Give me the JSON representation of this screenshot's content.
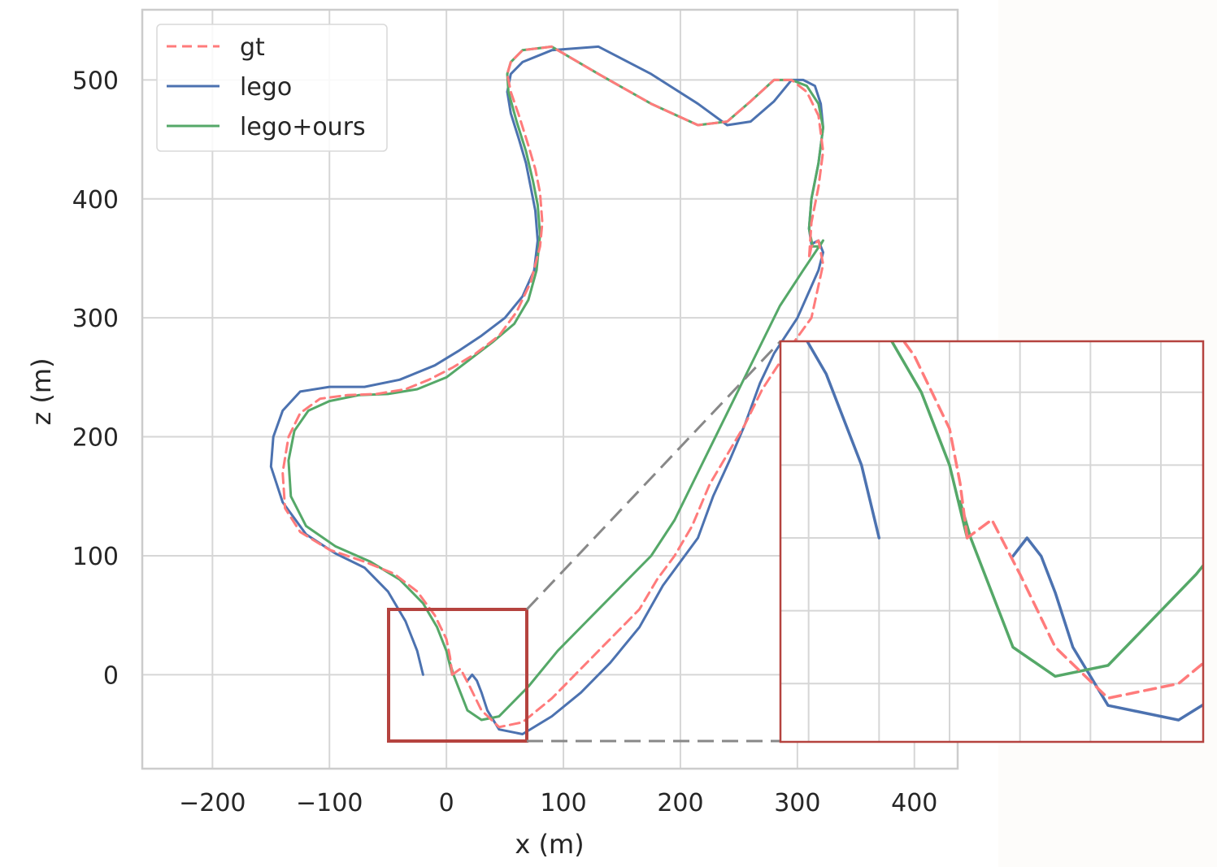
{
  "chart_data": {
    "type": "line",
    "xlabel": "x (m)",
    "ylabel": "z (m)",
    "xlim": [
      -260,
      437
    ],
    "ylim": [
      -79,
      559
    ],
    "xticks": [
      -200,
      -100,
      0,
      100,
      200,
      300,
      400
    ],
    "xtick_labels": [
      "−200",
      "−100",
      "0",
      "100",
      "200",
      "300",
      "400"
    ],
    "yticks": [
      0,
      100,
      200,
      300,
      400,
      500
    ],
    "ytick_labels": [
      "0",
      "100",
      "200",
      "300",
      "400",
      "500"
    ],
    "grid": true,
    "legend_position": "top-left",
    "series": [
      {
        "name": "gt",
        "color": "#ff7b7b",
        "style": "dashed",
        "x": [
          5,
          3,
          0,
          -10,
          -25,
          -45,
          -70,
          -100,
          -125,
          -138,
          -140,
          -135,
          -125,
          -108,
          -85,
          -60,
          -35,
          -15,
          5,
          25,
          45,
          60,
          72,
          80,
          82,
          80,
          76,
          70,
          62,
          55,
          52,
          55,
          65,
          90,
          130,
          175,
          215,
          240,
          260,
          280,
          295,
          308,
          318,
          322,
          318,
          312,
          310,
          312,
          318,
          322,
          312,
          290,
          270,
          255,
          240,
          225,
          210,
          195,
          180,
          165,
          140,
          115,
          90,
          65,
          45,
          30,
          20,
          12,
          5
        ],
        "z": [
          0,
          15,
          30,
          50,
          70,
          85,
          95,
          105,
          120,
          140,
          170,
          200,
          220,
          232,
          235,
          236,
          240,
          248,
          258,
          270,
          285,
          305,
          330,
          360,
          380,
          405,
          425,
          445,
          470,
          490,
          505,
          515,
          525,
          528,
          505,
          480,
          462,
          465,
          482,
          500,
          500,
          490,
          470,
          440,
          410,
          380,
          350,
          360,
          365,
          345,
          300,
          270,
          240,
          210,
          185,
          160,
          125,
          100,
          80,
          55,
          30,
          5,
          -20,
          -40,
          -44,
          -30,
          -10,
          5,
          0
        ]
      },
      {
        "name": "lego",
        "color": "#4c72b0",
        "style": "solid",
        "x": [
          -20,
          -25,
          -35,
          -50,
          -70,
          -95,
          -120,
          -140,
          -150,
          -148,
          -140,
          -125,
          -100,
          -70,
          -40,
          -10,
          10,
          30,
          50,
          65,
          75,
          78,
          76,
          72,
          68,
          62,
          55,
          52,
          55,
          65,
          90,
          130,
          175,
          215,
          240,
          260,
          280,
          295,
          305,
          315,
          320,
          322,
          318,
          312,
          310,
          312,
          318,
          322,
          318,
          300,
          280,
          268,
          255,
          242,
          228,
          215,
          200,
          185,
          165,
          140,
          115,
          90,
          65,
          45,
          35,
          30,
          26,
          22,
          18
        ],
        "z": [
          0,
          20,
          45,
          70,
          90,
          102,
          118,
          145,
          175,
          200,
          222,
          238,
          242,
          242,
          248,
          260,
          272,
          285,
          300,
          318,
          340,
          365,
          390,
          410,
          430,
          450,
          472,
          490,
          505,
          515,
          525,
          528,
          505,
          480,
          462,
          465,
          482,
          500,
          500,
          495,
          480,
          460,
          430,
          400,
          375,
          362,
          365,
          355,
          340,
          300,
          270,
          245,
          210,
          180,
          150,
          115,
          95,
          75,
          40,
          10,
          -15,
          -35,
          -50,
          -46,
          -30,
          -15,
          -5,
          0,
          -5
        ]
      },
      {
        "name": "lego+ours",
        "color": "#55a868",
        "style": "solid",
        "x": [
          5,
          0,
          -8,
          -20,
          -40,
          -65,
          -95,
          -120,
          -133,
          -135,
          -130,
          -118,
          -100,
          -75,
          -50,
          -25,
          0,
          20,
          40,
          58,
          70,
          77,
          80,
          78,
          74,
          68,
          60,
          53,
          52,
          55,
          65,
          90,
          130,
          175,
          215,
          240,
          260,
          280,
          295,
          308,
          318,
          322,
          318,
          312,
          310,
          313,
          319,
          322,
          305,
          285,
          270,
          255,
          240,
          225,
          210,
          195,
          175,
          150,
          120,
          95,
          70,
          45,
          30,
          18,
          12,
          6,
          3
        ],
        "z": [
          0,
          20,
          40,
          60,
          80,
          95,
          108,
          125,
          150,
          180,
          205,
          222,
          230,
          235,
          236,
          240,
          250,
          265,
          280,
          295,
          315,
          340,
          370,
          395,
          415,
          440,
          465,
          490,
          505,
          515,
          525,
          528,
          505,
          480,
          462,
          465,
          482,
          500,
          500,
          495,
          480,
          460,
          430,
          400,
          375,
          360,
          360,
          365,
          340,
          310,
          280,
          250,
          220,
          190,
          160,
          130,
          100,
          75,
          45,
          20,
          -10,
          -35,
          -38,
          -30,
          -15,
          0,
          10
        ]
      }
    ],
    "inset": {
      "description_zoom_of": "boxed region near origin",
      "box_xlim": [
        -48,
        72
      ],
      "box_ylim": [
        -56,
        54
      ]
    }
  }
}
